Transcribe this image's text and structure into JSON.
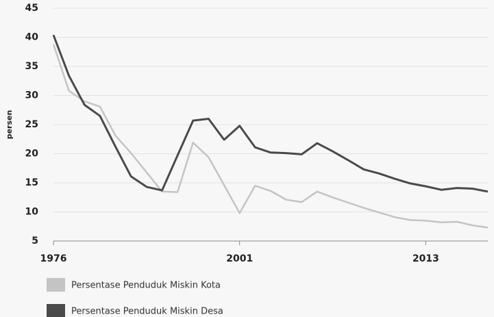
{
  "chart_data": {
    "type": "line",
    "y_label": "persen",
    "categories": [
      "1976",
      null,
      null,
      null,
      null,
      null,
      null,
      null,
      null,
      null,
      null,
      null,
      "2001",
      null,
      null,
      null,
      null,
      null,
      null,
      null,
      null,
      null,
      null,
      null,
      "2013",
      null,
      null,
      null,
      null
    ],
    "series": [
      {
        "name": "Persentase Penduduk Miskin Kota",
        "color": "#c4c4c4",
        "values": [
          38.8,
          30.8,
          29.0,
          28.1,
          23.1,
          20.1,
          16.8,
          13.5,
          13.4,
          21.9,
          19.4,
          14.6,
          9.8,
          14.5,
          13.6,
          12.1,
          11.7,
          13.5,
          12.5,
          11.6,
          10.7,
          9.9,
          9.1,
          8.6,
          8.5,
          8.2,
          8.3,
          7.7,
          7.3
        ]
      },
      {
        "name": "Persentase Penduduk Miskin Desa",
        "color": "#4a4a4a",
        "values": [
          40.4,
          33.4,
          28.4,
          26.5,
          21.2,
          16.1,
          14.3,
          13.7,
          19.7,
          25.7,
          26.0,
          22.4,
          24.8,
          21.1,
          20.2,
          20.1,
          19.9,
          21.8,
          20.4,
          18.9,
          17.3,
          16.6,
          15.7,
          14.9,
          14.4,
          13.8,
          14.1,
          14.0,
          13.5
        ]
      }
    ],
    "ylim": [
      5,
      45
    ],
    "yticks": [
      5,
      10,
      15,
      20,
      25,
      30,
      35,
      40,
      45
    ],
    "grid": true
  }
}
